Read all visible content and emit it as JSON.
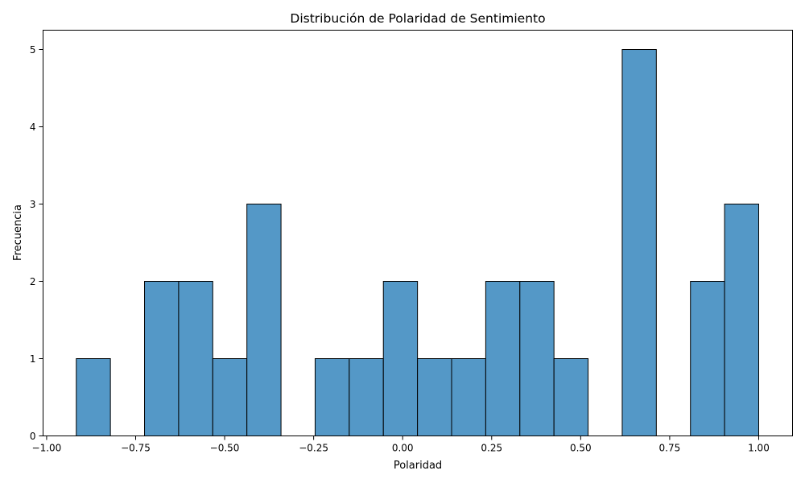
{
  "chart_data": {
    "type": "bar",
    "title": "Distribución de Polaridad de Sentimiento",
    "xlabel": "Polaridad",
    "ylabel": "Frecuencia",
    "xlim": [
      -1.01,
      1.095
    ],
    "ylim": [
      0,
      5.25
    ],
    "grid": false,
    "bar_color": "#5498c7",
    "edge_color": "#000000",
    "x_ticks": [
      -1.0,
      -0.75,
      -0.5,
      -0.25,
      0.0,
      0.25,
      0.5,
      0.75,
      1.0
    ],
    "x_tick_labels": [
      "−1.00",
      "−0.75",
      "−0.50",
      "−0.25",
      "0.00",
      "0.25",
      "0.50",
      "0.75",
      "1.00"
    ],
    "y_ticks": [
      0,
      1,
      2,
      3,
      4,
      5
    ],
    "y_tick_labels": [
      "0",
      "1",
      "2",
      "3",
      "4",
      "5"
    ],
    "bin_start": -0.9167,
    "bin_end": 1.0,
    "bin_count": 20,
    "values": [
      1,
      0,
      2,
      2,
      1,
      3,
      0,
      1,
      1,
      2,
      1,
      1,
      2,
      2,
      1,
      0,
      5,
      0,
      2,
      3
    ]
  }
}
